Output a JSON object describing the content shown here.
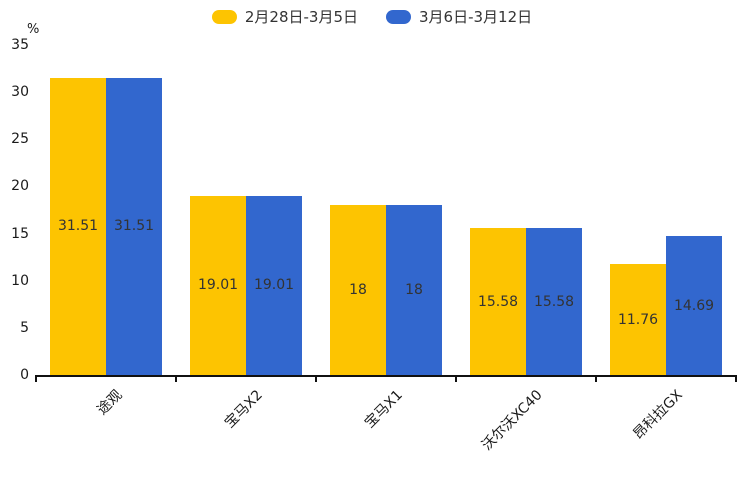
{
  "chart_data": {
    "type": "bar",
    "title": "",
    "categories": [
      "途观",
      "宝马X2",
      "宝马X1",
      "沃尔沃XC40",
      "昂科拉GX"
    ],
    "series": [
      {
        "name": "2月28日-3月5日",
        "color": "#FDC401",
        "values": [
          31.51,
          19.01,
          18,
          15.58,
          11.76
        ]
      },
      {
        "name": "3月6日-3月12日",
        "color": "#3267CE",
        "values": [
          31.51,
          19.01,
          18,
          15.58,
          14.69
        ]
      }
    ],
    "xlabel": "",
    "ylabel": "%",
    "ylim": [
      0,
      35
    ],
    "yticks": [
      0,
      5,
      10,
      15,
      20,
      25,
      30,
      35
    ],
    "grid": false,
    "legend_position": "top-center",
    "bar_labels": true,
    "bar_label_color": "#333333",
    "axis_color": "#111111",
    "xtick_rotation_deg": 45
  }
}
